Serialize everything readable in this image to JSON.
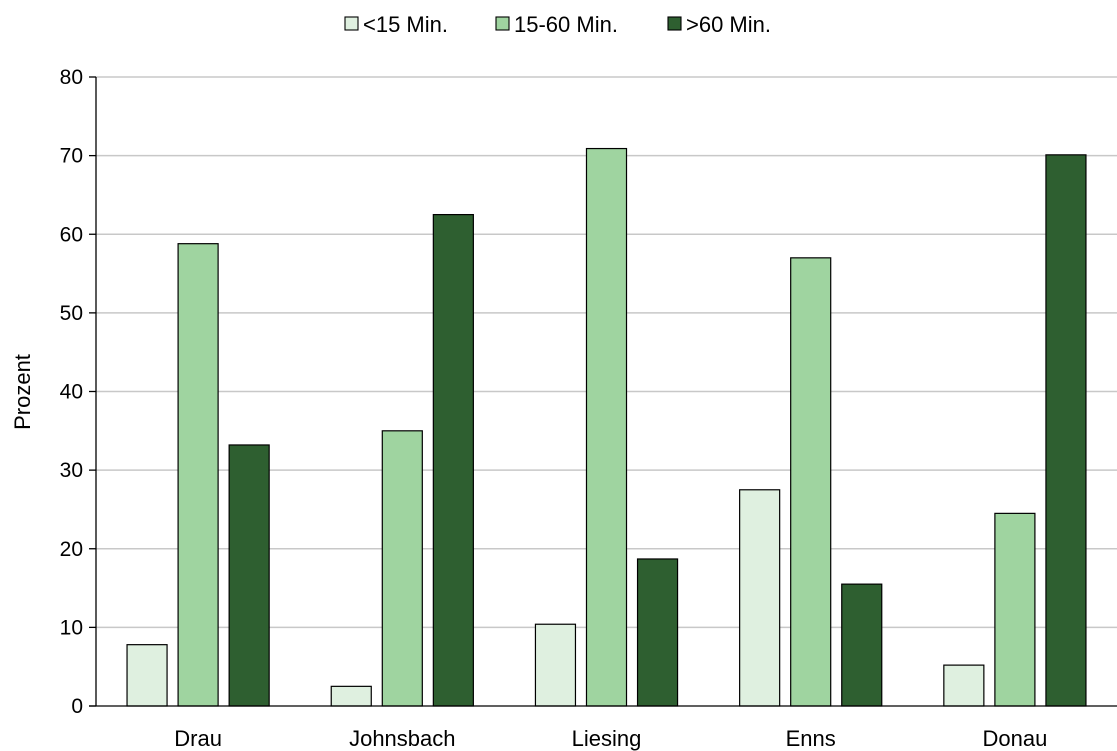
{
  "chart_data": {
    "type": "bar",
    "title": "",
    "xlabel": "",
    "ylabel": "Prozent",
    "ylim": [
      0,
      80
    ],
    "yticks": [
      0,
      10,
      20,
      30,
      40,
      50,
      60,
      70,
      80
    ],
    "grid": true,
    "legend_position": "top",
    "categories": [
      "Drau",
      "Johnsbach",
      "Liesing",
      "Enns",
      "Donau"
    ],
    "series": [
      {
        "name": "<15 Min.",
        "color": "#dff0e0",
        "values": [
          7.8,
          2.5,
          10.4,
          27.5,
          5.2
        ]
      },
      {
        "name": "15-60 Min.",
        "color": "#9fd4a0",
        "values": [
          58.8,
          35.0,
          70.9,
          57.0,
          24.5
        ]
      },
      {
        "name": ">60 Min.",
        "color": "#2e5f30",
        "values": [
          33.2,
          62.5,
          18.7,
          15.5,
          70.1
        ]
      }
    ]
  }
}
